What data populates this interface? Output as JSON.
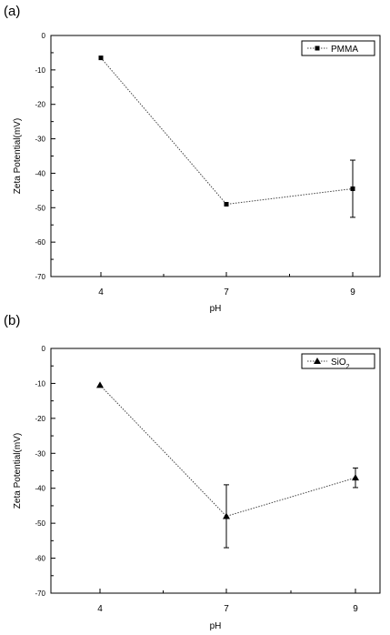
{
  "chart_data": [
    {
      "panel_label": "(a)",
      "type": "line",
      "xlabel": "pH",
      "ylabel": "Zeta Potential(mV)",
      "ylim": [
        -70,
        0
      ],
      "yticks": [
        "0",
        "-10",
        "-20",
        "-30",
        "-40",
        "-50",
        "-60",
        "-70"
      ],
      "categories": [
        "4",
        "7",
        "9"
      ],
      "series": [
        {
          "name": "PMMA",
          "marker": "square",
          "values": [
            -6.5,
            -49,
            -44.5
          ],
          "error": [
            0,
            0,
            8.3
          ]
        }
      ],
      "legend_position": "top-right",
      "grid": false
    },
    {
      "panel_label": "(b)",
      "type": "line",
      "xlabel": "pH",
      "ylabel": "Zeta Potential(mV)",
      "ylim": [
        -70,
        0
      ],
      "yticks": [
        "0",
        "-10",
        "-20",
        "-30",
        "-40",
        "-50",
        "-60",
        "-70"
      ],
      "categories": [
        "4",
        "7",
        "9"
      ],
      "series": [
        {
          "name": "SiO",
          "name_subscript": "2",
          "marker": "triangle",
          "values": [
            -10.5,
            -48,
            -37
          ],
          "error": [
            0,
            9,
            2.8
          ]
        }
      ],
      "legend_position": "top-right",
      "grid": false
    }
  ]
}
